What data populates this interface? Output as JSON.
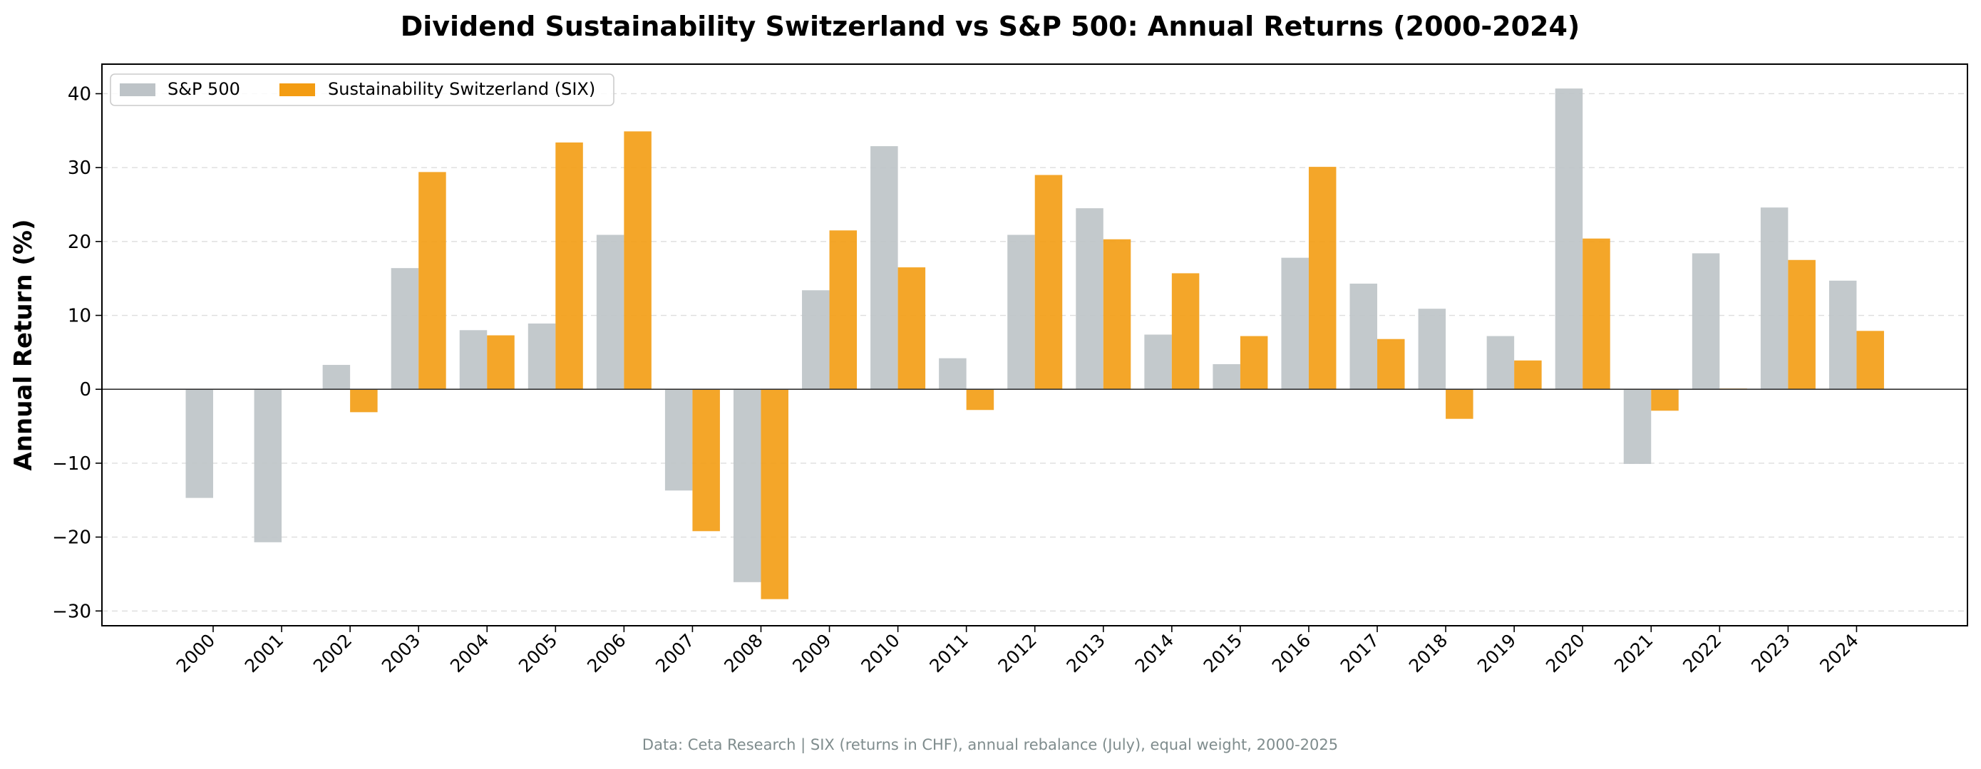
{
  "chart_data": {
    "type": "bar",
    "title": "Dividend Sustainability Switzerland vs S&P 500: Annual Returns (2000-2024)",
    "xlabel": "",
    "ylabel": "Annual Return (%)",
    "ylim": [
      -32,
      44
    ],
    "yticks": [
      -30,
      -20,
      -10,
      0,
      10,
      20,
      30,
      40
    ],
    "ytick_labels": [
      "−30",
      "−20",
      "−10",
      "0",
      "10",
      "20",
      "30",
      "40"
    ],
    "grid": "horizontal dashed",
    "legend_position": "top-left",
    "categories": [
      "2000",
      "2001",
      "2002",
      "2003",
      "2004",
      "2005",
      "2006",
      "2007",
      "2008",
      "2009",
      "2010",
      "2011",
      "2012",
      "2013",
      "2014",
      "2015",
      "2016",
      "2017",
      "2018",
      "2019",
      "2020",
      "2021",
      "2022",
      "2023",
      "2024"
    ],
    "series": [
      {
        "name": "S&P 500",
        "color": "#bdc3c7",
        "values": [
          -14.7,
          -20.7,
          3.3,
          16.4,
          8.0,
          8.9,
          20.9,
          -13.7,
          -26.1,
          13.4,
          32.9,
          4.2,
          20.9,
          24.5,
          7.4,
          3.4,
          17.8,
          14.3,
          10.9,
          7.2,
          40.7,
          -10.1,
          18.4,
          24.6,
          14.7
        ]
      },
      {
        "name": "Sustainability Switzerland (SIX)",
        "color": "#f39c12",
        "values": [
          0,
          0,
          -3.1,
          29.4,
          7.3,
          33.4,
          34.9,
          -19.2,
          -28.4,
          21.5,
          16.5,
          -2.8,
          29.0,
          20.3,
          15.7,
          7.2,
          30.1,
          6.8,
          -4.0,
          3.9,
          20.4,
          -2.9,
          0.1,
          17.5,
          7.9
        ]
      }
    ],
    "footnote": "Data: Ceta Research | SIX (returns in CHF), annual rebalance (July), equal weight, 2000-2025"
  }
}
